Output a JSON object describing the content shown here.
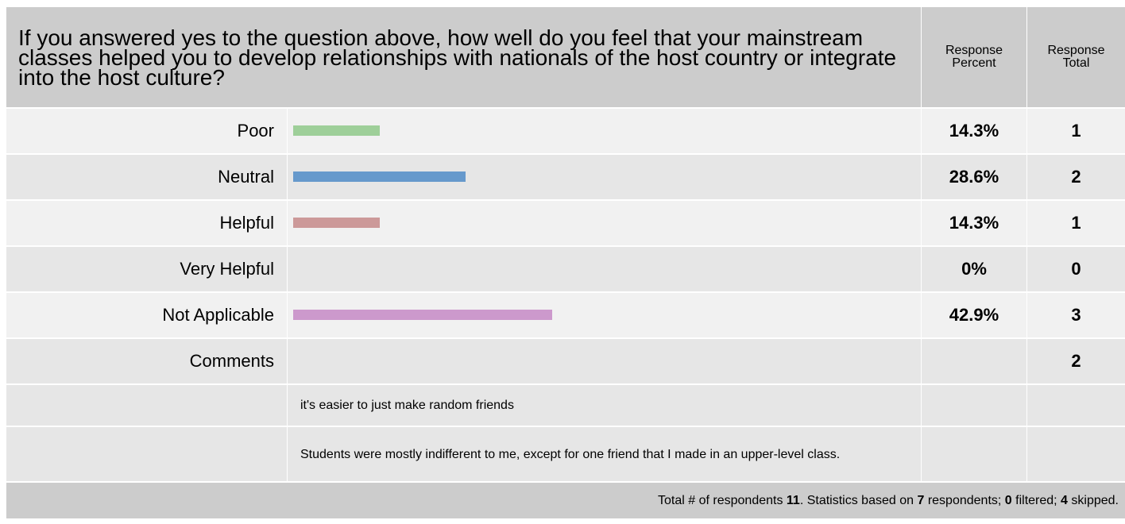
{
  "header": {
    "question": "If you answered yes to the question above, how well do you feel that your mainstream classes helped you to develop relationships with nationals of the host country or integrate into the host culture?",
    "response_percent": [
      "Response",
      "Percent"
    ],
    "response_total": [
      "Response",
      "Total"
    ]
  },
  "chart_data": {
    "type": "bar",
    "orientation": "horizontal",
    "categories": [
      "Poor",
      "Neutral",
      "Helpful",
      "Very Helpful",
      "Not Applicable"
    ],
    "values": [
      14.3,
      28.6,
      14.3,
      0,
      42.9
    ],
    "percent_labels": [
      "14.3%",
      "28.6%",
      "14.3%",
      "0%",
      "42.9%"
    ],
    "totals": [
      "1",
      "2",
      "1",
      "0",
      "3"
    ],
    "colors": [
      "#9ecf99",
      "#6699cc",
      "#cc9999",
      "#cccccc",
      "#cc99cc"
    ],
    "unit": "%"
  },
  "comments": {
    "label": "Comments",
    "total": "2",
    "items": [
      "it's easier to just make random friends",
      "Students were mostly indifferent to me, except for one friend that I made in an upper-level class."
    ]
  },
  "footer": {
    "prefix": "Total # of respondents ",
    "total": "11",
    "mid1": ". Statistics based on ",
    "based": "7",
    "mid2": " respondents; ",
    "filtered": "0",
    "mid3": " filtered; ",
    "skipped": "4",
    "suffix": " skipped."
  }
}
